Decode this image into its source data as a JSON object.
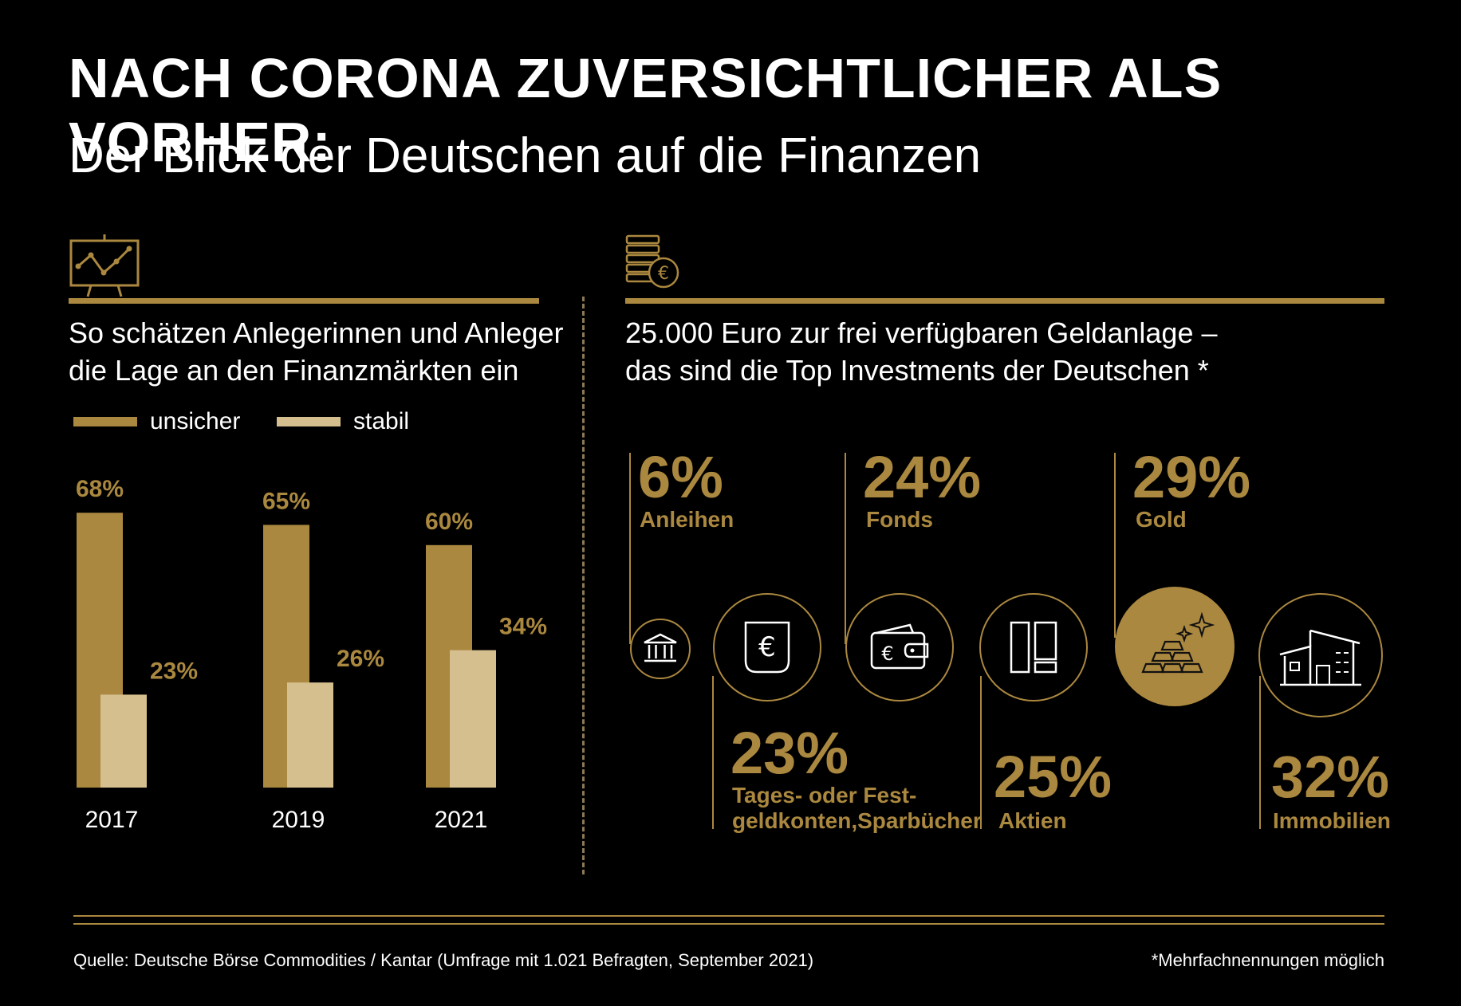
{
  "header": {
    "title": "NACH CORONA ZUVERSICHTLICHER ALS VORHER:",
    "subtitle": "Der Blick der Deutschen auf die Finanzen"
  },
  "colors": {
    "background": "#000000",
    "gold": "#ab883f",
    "light_gold": "#d6bf8e",
    "text": "#ffffff"
  },
  "left": {
    "icon": "presentation-chart-icon",
    "text_line1": "So schätzen Anlegerinnen und Anleger",
    "text_line2": "die Lage an den Finanzmärkten ein"
  },
  "right": {
    "icon": "coins-euro-icon",
    "text_line1": "25.000 Euro zur frei verfügbaren Geldanlage –",
    "text_line2": "das sind die Top Investments der Deutschen *"
  },
  "chart_data": [
    {
      "type": "bar",
      "categories": [
        "2017",
        "2019",
        "2021"
      ],
      "series": [
        {
          "name": "unsicher",
          "values": [
            68,
            65,
            60
          ],
          "labels": [
            "68%",
            "65%",
            "60%"
          ],
          "color": "#ab883f"
        },
        {
          "name": "stabil",
          "values": [
            23,
            26,
            34
          ],
          "labels": [
            "23%",
            "26%",
            "34%"
          ],
          "color": "#d6bf8e"
        }
      ],
      "ylim": [
        0,
        70
      ],
      "grid": false,
      "legend": "top-left"
    },
    {
      "type": "table",
      "items": [
        {
          "percent": "6%",
          "label": "Anleihen",
          "icon": "bank-icon"
        },
        {
          "percent": "23%",
          "label_line1": "Tages- oder Fest-",
          "label_line2": "geldkonten,Sparbücher",
          "icon": "euro-pocket-icon"
        },
        {
          "percent": "24%",
          "label": "Fonds",
          "icon": "wallet-icon"
        },
        {
          "percent": "25%",
          "label": "Aktien",
          "icon": "documents-icon"
        },
        {
          "percent": "29%",
          "label": "Gold",
          "icon": "gold-bars-icon"
        },
        {
          "percent": "32%",
          "label": "Immobilien",
          "icon": "house-icon"
        }
      ]
    }
  ],
  "footer": {
    "source": "Quelle: Deutsche Börse Commodities / Kantar (Umfrage mit 1.021 Befragten, September 2021)",
    "footnote": "*Mehrfachnennungen möglich"
  }
}
